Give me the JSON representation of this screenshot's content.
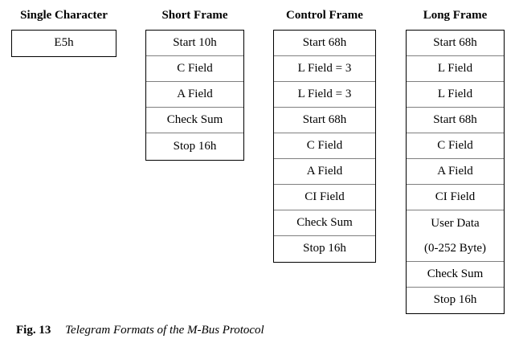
{
  "columns": [
    {
      "title": "Single Character",
      "rows": [
        "E5h"
      ]
    },
    {
      "title": "Short Frame",
      "rows": [
        "Start 10h",
        "C Field",
        "A Field",
        "Check Sum",
        "Stop 16h"
      ]
    },
    {
      "title": "Control Frame",
      "rows": [
        "Start 68h",
        "L Field = 3",
        "L Field = 3",
        "Start 68h",
        "C Field",
        "A Field",
        "CI Field",
        "Check Sum",
        "Stop 16h"
      ]
    },
    {
      "title": "Long Frame",
      "rows": [
        "Start 68h",
        "L Field",
        "L Field",
        "Start 68h",
        "C Field",
        "A Field",
        "CI Field",
        "User Data",
        "(0-252 Byte)",
        "Check Sum",
        "Stop 16h"
      ]
    }
  ],
  "caption": {
    "label": "Fig. 13",
    "text": "Telegram Formats of the M-Bus Protocol"
  }
}
